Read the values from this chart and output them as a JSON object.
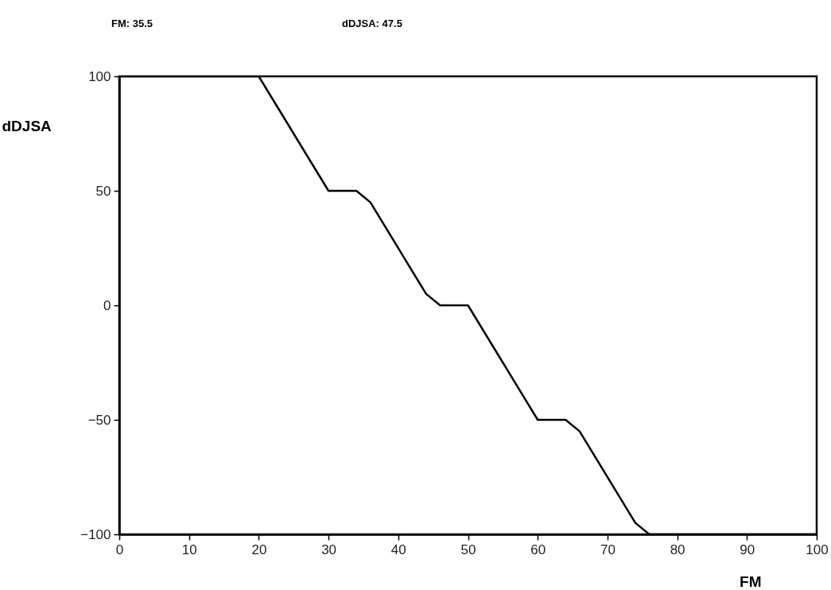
{
  "chart_data": {
    "type": "line",
    "xlabel": "FM",
    "ylabel": "dDJSA",
    "annotations": [
      "FM: 35.5",
      "dDJSA: 47.5"
    ],
    "x": [
      0,
      20,
      30,
      34,
      36,
      44,
      46,
      50,
      60,
      64,
      66,
      74,
      76,
      100
    ],
    "series": [
      {
        "color": "#000000",
        "values": [
          100,
          100,
          50,
          50,
          45,
          5,
          0,
          0,
          -50,
          -50,
          -55,
          -95,
          -100,
          -100
        ]
      }
    ],
    "xlim": [
      0,
      100
    ],
    "xticks": [
      0,
      10,
      20,
      30,
      40,
      50,
      60,
      70,
      80,
      90,
      100
    ],
    "ylim": [
      -100,
      100
    ],
    "yticks": [
      -100,
      -50,
      0,
      50,
      100
    ],
    "grid": false,
    "marker": "none",
    "line_style": "solid"
  }
}
